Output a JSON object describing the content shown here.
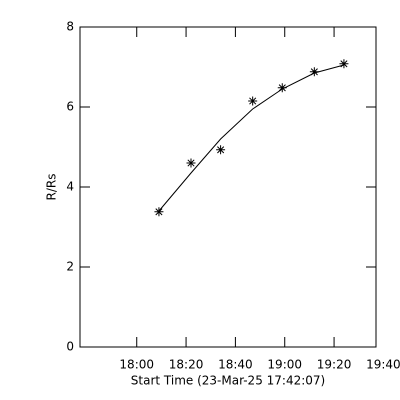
{
  "chart_data": {
    "type": "scatter",
    "xlabel": "Start Time (23-Mar-25 17:42:07)",
    "ylabel": "R/Rs",
    "xlim": [
      1057,
      1177
    ],
    "xticks": [
      {
        "value": 1080,
        "label": "18:00"
      },
      {
        "value": 1100,
        "label": "18:20"
      },
      {
        "value": 1120,
        "label": "18:40"
      },
      {
        "value": 1140,
        "label": "19:00"
      },
      {
        "value": 1160,
        "label": "19:20"
      },
      {
        "value": 1180,
        "label": "19:40"
      }
    ],
    "ylim": [
      0,
      8
    ],
    "yticks": [
      0,
      2,
      4,
      6,
      8
    ],
    "color": "#000000",
    "series": [
      {
        "x": [
          1089,
          1102,
          1114,
          1127,
          1139,
          1152,
          1164
        ],
        "values": [
          3.38,
          4.6,
          4.93,
          6.15,
          6.48,
          6.88,
          7.08
        ],
        "marker": "asterisk"
      },
      {
        "x": [
          1089,
          1102,
          1114,
          1127,
          1139,
          1152,
          1164
        ],
        "values": [
          3.4,
          4.35,
          5.2,
          5.95,
          6.45,
          6.85,
          7.05
        ],
        "marker": "line"
      }
    ]
  }
}
